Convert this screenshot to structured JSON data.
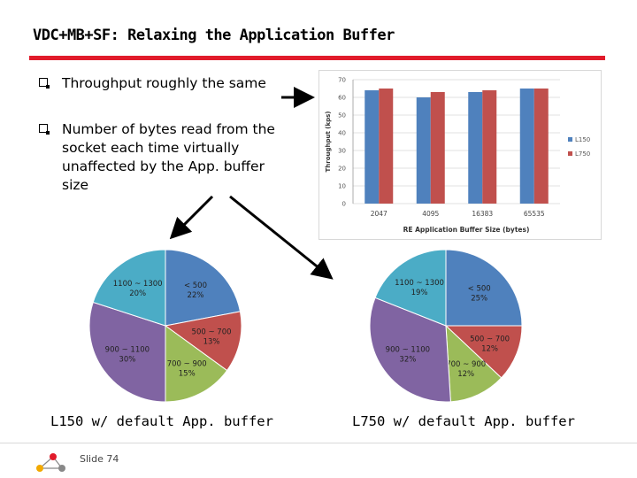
{
  "slide": {
    "title": "VDC+MB+SF: Relaxing the Application Buffer",
    "bullets": [
      "Throughput roughly the same",
      "Number of bytes read from the\nsocket each time virtually\nunaffected by the App. buffer\nsize"
    ],
    "pie_captions": [
      "L150 w/ default App. buffer",
      "L750 w/ default App. buffer"
    ],
    "slide_number": "Slide 74",
    "accent_color": "#e11b2b"
  },
  "chart_data": [
    {
      "type": "bar",
      "title": "",
      "xlabel": "RE Application Buffer Size (bytes)",
      "ylabel": "Throughput (kps)",
      "categories": [
        "2047",
        "4095",
        "16383",
        "65535"
      ],
      "ylim": [
        0,
        70
      ],
      "yticks": [
        "0",
        "10",
        "20",
        "30",
        "40",
        "50",
        "60",
        "70"
      ],
      "grid": true,
      "legend_position": "right",
      "series": [
        {
          "name": "L150",
          "color": "#4f81bd",
          "values": [
            64,
            60,
            63,
            65
          ]
        },
        {
          "name": "L750",
          "color": "#c0504d",
          "values": [
            65,
            63,
            64,
            65
          ]
        }
      ]
    },
    {
      "type": "pie",
      "caption": "L150 w/ default App. buffer",
      "slices": [
        {
          "label": "< 500",
          "value": 22,
          "pct": "22%",
          "color": "#4f81bd"
        },
        {
          "label": "500 ~ 700",
          "value": 13,
          "pct": "13%",
          "color": "#c0504d"
        },
        {
          "label": "700 ~ 900",
          "value": 15,
          "pct": "15%",
          "color": "#9bbb59"
        },
        {
          "label": "900 ~ 1100",
          "value": 30,
          "pct": "30%",
          "color": "#8064a2"
        },
        {
          "label": "1100 ~ 1300",
          "value": 20,
          "pct": "20%",
          "color": "#4bacc6"
        }
      ]
    },
    {
      "type": "pie",
      "caption": "L750 w/ default App. buffer",
      "slices": [
        {
          "label": "< 500",
          "value": 25,
          "pct": "25%",
          "color": "#4f81bd"
        },
        {
          "label": "500 ~ 700",
          "value": 12,
          "pct": "12%",
          "color": "#c0504d"
        },
        {
          "label": "700 ~ 900",
          "value": 12,
          "pct": "12%",
          "color": "#9bbb59"
        },
        {
          "label": "900 ~ 1100",
          "value": 32,
          "pct": "32%",
          "color": "#8064a2"
        },
        {
          "label": "1100 ~ 1300",
          "value": 19,
          "pct": "19%",
          "color": "#4bacc6"
        }
      ]
    }
  ]
}
